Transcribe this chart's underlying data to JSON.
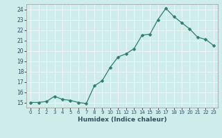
{
  "x": [
    0,
    1,
    2,
    3,
    4,
    5,
    6,
    7,
    8,
    9,
    10,
    11,
    12,
    13,
    14,
    15,
    16,
    17,
    18,
    19,
    20,
    21,
    22,
    23
  ],
  "y": [
    15.0,
    15.0,
    15.1,
    15.6,
    15.3,
    15.2,
    15.0,
    14.9,
    16.6,
    17.1,
    18.4,
    19.4,
    19.7,
    20.2,
    21.5,
    21.6,
    23.0,
    24.1,
    23.3,
    22.7,
    22.1,
    21.3,
    21.1,
    20.5
  ],
  "line_color": "#2e7d6e",
  "marker": "D",
  "marker_size": 2.5,
  "bg_color": "#ceecea",
  "grid_color": "#f5fafa",
  "xlabel": "Humidex (Indice chaleur)",
  "ylabel_ticks": [
    15,
    16,
    17,
    18,
    19,
    20,
    21,
    22,
    23,
    24
  ],
  "xlim": [
    -0.5,
    23.5
  ],
  "ylim": [
    14.5,
    24.5
  ],
  "tick_color": "#2e5060",
  "xlabel_fontsize": 6.5,
  "ytick_fontsize": 5.5,
  "xtick_fontsize": 5.0
}
